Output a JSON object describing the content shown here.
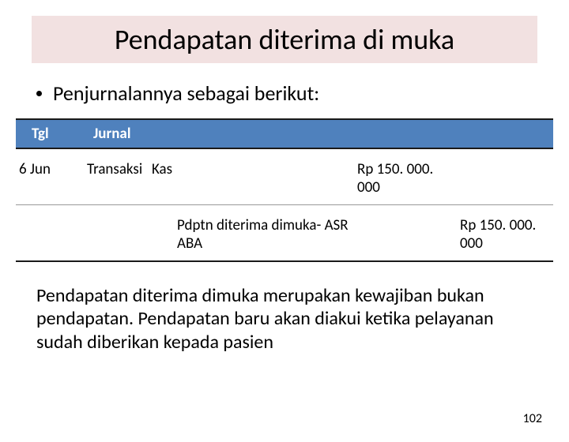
{
  "title": "Pendapatan diterima di muka",
  "bullet_text": "Penjurnalannya sebagai berikut:",
  "table": {
    "header_bg": "#4f81bd",
    "header_fg": "#ffffff",
    "col_date": "Tgl",
    "col_journal": "Jurnal",
    "rows": [
      {
        "date": "6 Jun",
        "label": "Transaksi",
        "account": "Kas",
        "debit": "Rp 150. 000. 000",
        "credit": ""
      },
      {
        "date": "",
        "label": "",
        "account": "Pdptn diterima dimuka- ASR ABA",
        "debit": "",
        "credit": "Rp 150. 000. 000"
      }
    ]
  },
  "body_text": "Pendapatan diterima dimuka merupakan kewajiban bukan pendapatan. Pendapatan baru akan diakui ketika pelayanan sudah diberikan kepada pasien",
  "page_number": "102"
}
